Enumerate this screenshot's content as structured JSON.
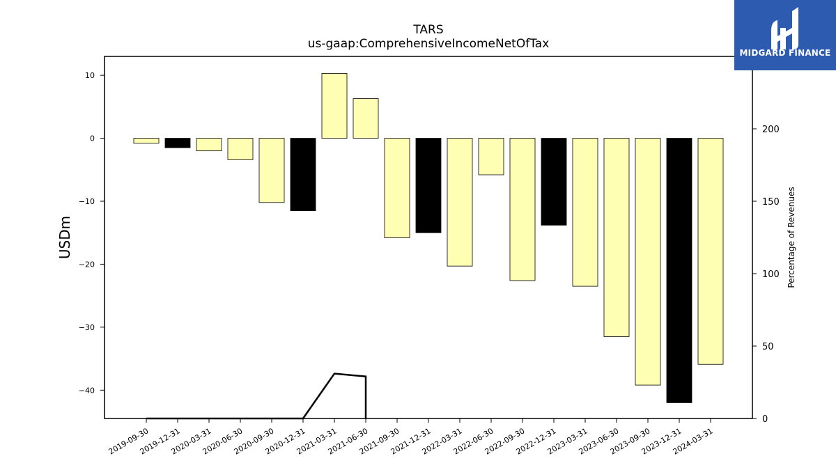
{
  "logo": {
    "text": "MIDGARD FINANCE",
    "background": "#2c5bb0"
  },
  "chart_data": {
    "type": "bar",
    "title": "TARS",
    "subtitle": "us-gaap:ComprehensiveIncomeNetOfTax",
    "ylabel": "USDm",
    "y2label": "Percentage of Revenues",
    "ylim": [
      -44.5,
      13
    ],
    "y2lim": [
      0,
      250
    ],
    "yticks": [
      10,
      0,
      -10,
      -20,
      -30,
      -40
    ],
    "y2ticks": [
      0,
      50,
      100,
      150,
      200
    ],
    "categories": [
      "2019-09-30",
      "2019-12-31",
      "2020-03-31",
      "2020-06-30",
      "2020-09-30",
      "2020-12-31",
      "2021-03-31",
      "2021-06-30",
      "2021-09-30",
      "2021-12-31",
      "2022-03-31",
      "2022-06-30",
      "2022-09-30",
      "2022-12-31",
      "2023-03-31",
      "2023-06-30",
      "2023-09-30",
      "2023-12-31",
      "2024-03-31"
    ],
    "values": [
      -0.8,
      -1.5,
      -2.0,
      -3.4,
      -10.2,
      -11.5,
      10.3,
      6.3,
      -15.8,
      -15.0,
      -20.3,
      -5.8,
      -22.6,
      -13.8,
      -23.5,
      -31.5,
      -39.2,
      -42.0,
      -35.9
    ],
    "bar_colors": [
      "#ffffb3",
      "#000000",
      "#ffffb3",
      "#ffffb3",
      "#ffffb3",
      "#000000",
      "#ffffb3",
      "#ffffb3",
      "#ffffb3",
      "#000000",
      "#ffffb3",
      "#ffffb3",
      "#ffffb3",
      "#000000",
      "#ffffb3",
      "#ffffb3",
      "#ffffb3",
      "#000000",
      "#ffffb3"
    ],
    "line_series": {
      "axis": "right",
      "color": "#000000",
      "x_index": [
        0,
        5,
        6,
        7,
        7
      ],
      "values": [
        0,
        0,
        31,
        29,
        0
      ]
    },
    "grid": false,
    "legend": "none"
  }
}
